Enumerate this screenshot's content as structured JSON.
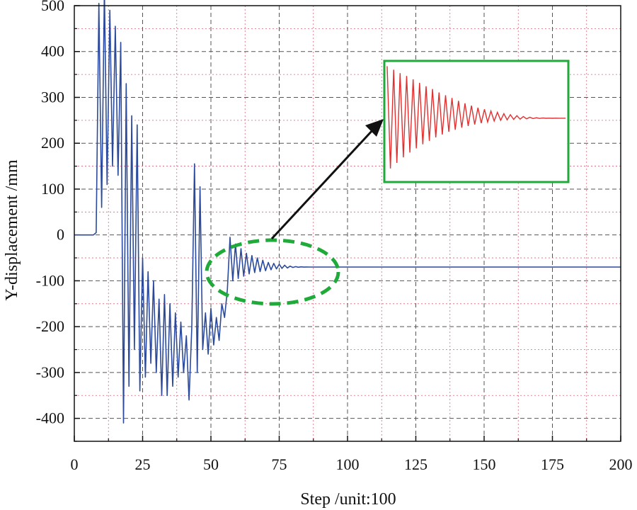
{
  "chart_data": {
    "type": "line",
    "xlabel": "Step /unit:100",
    "ylabel": "Y-displacement /mm",
    "xlim": [
      0,
      200
    ],
    "ylim": [
      -450,
      500
    ],
    "x_ticks": [
      0,
      25,
      50,
      75,
      100,
      125,
      150,
      175,
      200
    ],
    "y_ticks": [
      500,
      400,
      300,
      200,
      100,
      0,
      -100,
      -200,
      -300,
      -400
    ],
    "grid": true,
    "colors": {
      "main_series": "#2b4a9b",
      "inset_series": "#e03030",
      "highlight": "#1faa3a",
      "arrow": "#111111",
      "major_grid": "#555555",
      "minor_grid": "#e0607a"
    },
    "series": [
      {
        "x": [
          0,
          7,
          8,
          9,
          10,
          11,
          12,
          13,
          14,
          15,
          16,
          17,
          18,
          19,
          20,
          21,
          22,
          23,
          24,
          25,
          26,
          27,
          28,
          29,
          30,
          31,
          32,
          33,
          34,
          35,
          36,
          37,
          38,
          39,
          40,
          41,
          42,
          43,
          44,
          45,
          46,
          47,
          48,
          49,
          50,
          51,
          52,
          53,
          54,
          55,
          56,
          57,
          58,
          59,
          60,
          61,
          62,
          63,
          64,
          65,
          66,
          67,
          68,
          69,
          70,
          71,
          72,
          73,
          74,
          75,
          76,
          77,
          78,
          79,
          80,
          81,
          82,
          83,
          84,
          85,
          86,
          87,
          88,
          89,
          90,
          91,
          92,
          93,
          94,
          95,
          96,
          97,
          98,
          99,
          100,
          120,
          150,
          200
        ],
        "y": [
          0,
          0,
          5,
          505,
          60,
          535,
          110,
          490,
          150,
          455,
          130,
          420,
          -410,
          330,
          -330,
          260,
          -250,
          240,
          -340,
          -50,
          -310,
          -80,
          -280,
          -100,
          -300,
          -140,
          -350,
          -130,
          -350,
          -150,
          -330,
          -170,
          -310,
          -190,
          -300,
          -220,
          -360,
          -200,
          155,
          -300,
          105,
          -250,
          -170,
          -260,
          -160,
          -240,
          -180,
          -230,
          -150,
          -180,
          -120,
          -5,
          -100,
          -20,
          -95,
          -30,
          -90,
          -40,
          -85,
          -45,
          -82,
          -50,
          -80,
          -55,
          -78,
          -60,
          -76,
          -62,
          -74,
          -64,
          -73,
          -66,
          -72,
          -68,
          -71,
          -69,
          -70.5,
          -69.5,
          -70.2,
          -69.8,
          -70,
          -70,
          -70,
          -70,
          -70,
          -70,
          -70,
          -70,
          -70,
          -70,
          -70,
          -70,
          -70,
          -70,
          -70,
          -70,
          -70,
          -70
        ]
      }
    ],
    "inset": {
      "description_series": [
        400,
        -340,
        375,
        -300,
        350,
        -260,
        330,
        -225,
        305,
        -195,
        280,
        -165,
        255,
        -140,
        235,
        -115,
        210,
        -95,
        190,
        -75,
        170,
        -60,
        150,
        -45,
        132,
        -33,
        115,
        -22,
        100,
        -12,
        88,
        -4,
        76,
        3,
        66,
        8,
        57,
        12,
        49,
        15,
        42,
        17,
        36,
        19,
        31,
        21,
        27,
        22,
        25,
        23,
        24,
        23,
        24,
        23.5,
        23.5,
        23.5
      ]
    }
  }
}
